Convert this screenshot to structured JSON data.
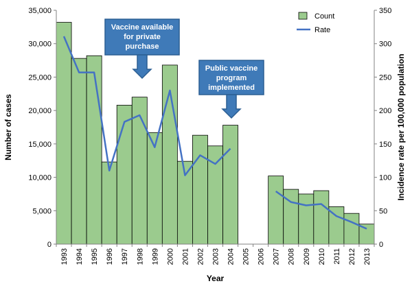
{
  "chart_data": {
    "type": "bar",
    "xlabel": "Year",
    "ylabel": "Number of cases",
    "y2label": "Incidence rate per 100,000 population",
    "ylim": [
      0,
      35000
    ],
    "y2lim": [
      0,
      350
    ],
    "grid": false,
    "legend_position": "top-right",
    "categories": [
      "1993",
      "1994",
      "1995",
      "1996",
      "1997",
      "1998",
      "1999",
      "2000",
      "2001",
      "2002",
      "2003",
      "2004",
      "2005",
      "2006",
      "2007",
      "2008",
      "2009",
      "2010",
      "2011",
      "2012",
      "2013"
    ],
    "y_ticks": [
      "0",
      "5,000",
      "10,000",
      "15,000",
      "20,000",
      "25,000",
      "30,000",
      "35,000"
    ],
    "y2_ticks": [
      "0",
      "50",
      "100",
      "150",
      "200",
      "250",
      "300",
      "350"
    ],
    "series": [
      {
        "name": "Count",
        "kind": "bar",
        "axis": "left",
        "color": "#9BCB8E",
        "values": [
          33200,
          27800,
          28200,
          12300,
          20800,
          22000,
          16700,
          26800,
          12400,
          16300,
          14700,
          17800,
          null,
          null,
          10200,
          8200,
          7500,
          8000,
          5600,
          4600,
          3000
        ]
      },
      {
        "name": "Rate",
        "kind": "line",
        "axis": "right",
        "color": "#4472C4",
        "values": [
          311,
          257,
          257,
          110,
          183,
          193,
          145,
          230,
          103,
          133,
          120,
          143,
          null,
          null,
          79,
          63,
          58,
          60,
          42,
          33,
          23
        ]
      }
    ],
    "annotations": [
      {
        "lines": [
          "Vaccine available",
          "for private",
          "purchase"
        ],
        "target": "1998"
      },
      {
        "lines": [
          "Public vaccine",
          "program",
          "implemented"
        ],
        "target": "2004"
      }
    ]
  },
  "colors": {
    "bar_fill": "#9BCB8E",
    "bar_stroke": "#000000",
    "line": "#4472C4",
    "callout_fill": "#3F7AB8",
    "callout_stroke": "#2C5F93"
  }
}
